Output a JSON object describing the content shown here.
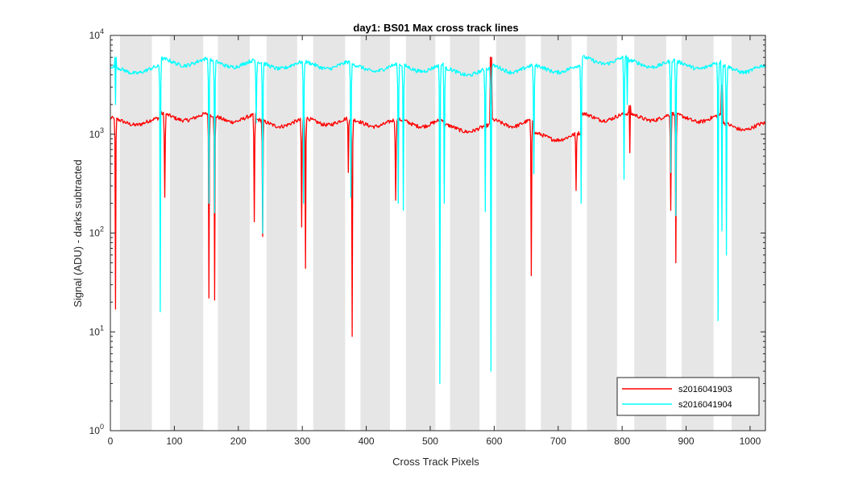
{
  "chart_data": {
    "type": "line",
    "title": "day1: BS01  Max cross track lines",
    "xlabel": "Cross Track Pixels",
    "ylabel": "Signal (ADU) - darks subtracted",
    "xlim": [
      0,
      1024
    ],
    "ylim": [
      1,
      10000
    ],
    "yscale": "log",
    "grid": false,
    "legend_position": "bottom-right",
    "x_ticks": [
      0,
      100,
      200,
      300,
      400,
      500,
      600,
      700,
      800,
      900,
      1000
    ],
    "y_ticks": [
      1,
      10,
      100,
      1000,
      10000
    ],
    "y_tick_labels": [
      {
        "base": "10",
        "exp": "0"
      },
      {
        "base": "10",
        "exp": "1"
      },
      {
        "base": "10",
        "exp": "2"
      },
      {
        "base": "10",
        "exp": "3"
      },
      {
        "base": "10",
        "exp": "4"
      }
    ],
    "shaded_regions": [
      [
        15,
        65
      ],
      [
        93,
        145
      ],
      [
        168,
        218
      ],
      [
        244,
        292
      ],
      [
        317,
        367
      ],
      [
        391,
        437
      ],
      [
        462,
        508
      ],
      [
        531,
        577
      ],
      [
        603,
        649
      ],
      [
        673,
        721
      ],
      [
        745,
        792
      ],
      [
        819,
        869
      ],
      [
        893,
        943
      ],
      [
        971,
        1024
      ]
    ],
    "segments": [
      [
        0,
        78
      ],
      [
        78,
        154
      ],
      [
        154,
        228
      ],
      [
        228,
        302
      ],
      [
        302,
        376
      ],
      [
        376,
        450
      ],
      [
        450,
        522
      ],
      [
        522,
        595
      ],
      [
        595,
        662
      ],
      [
        662,
        736
      ],
      [
        736,
        808
      ],
      [
        808,
        884
      ],
      [
        884,
        956
      ],
      [
        956,
        1024
      ]
    ],
    "series": [
      {
        "name": "s2016041903",
        "color": "#ff0000",
        "segment_levels": [
          1350,
          1500,
          1450,
          1300,
          1350,
          1300,
          1300,
          1150,
          1300,
          950,
          1500,
          1500,
          1450,
          1200
        ],
        "dips": [
          [
            8,
            17
          ],
          [
            85,
            230
          ],
          [
            154,
            22
          ],
          [
            163,
            21
          ],
          [
            225,
            130
          ],
          [
            238,
            92
          ],
          [
            299,
            115
          ],
          [
            305,
            44
          ],
          [
            372,
            410
          ],
          [
            378,
            9
          ],
          [
            446,
            215
          ],
          [
            595,
            2000
          ],
          [
            658,
            37
          ],
          [
            728,
            270
          ],
          [
            812,
            650
          ],
          [
            876,
            170
          ],
          [
            884,
            50
          ],
          [
            956,
            1050
          ]
        ]
      },
      {
        "name": "s2016041904",
        "color": "#00ffff",
        "segment_levels": [
          4500,
          5400,
          5200,
          5000,
          5000,
          4700,
          4700,
          4300,
          4600,
          4600,
          5600,
          5200,
          5000,
          4600
        ],
        "dips": [
          [
            8,
            2000
          ],
          [
            78,
            16
          ],
          [
            154,
            200
          ],
          [
            163,
            160
          ],
          [
            228,
            1300
          ],
          [
            238,
            100
          ],
          [
            302,
            200
          ],
          [
            376,
            230
          ],
          [
            450,
            200
          ],
          [
            458,
            170
          ],
          [
            515,
            3
          ],
          [
            522,
            200
          ],
          [
            586,
            165
          ],
          [
            595,
            4
          ],
          [
            662,
            400
          ],
          [
            736,
            200
          ],
          [
            803,
            350
          ],
          [
            808,
            2000
          ],
          [
            876,
            410
          ],
          [
            884,
            150
          ],
          [
            950,
            13
          ],
          [
            956,
            105
          ],
          [
            963,
            60
          ]
        ]
      }
    ]
  }
}
